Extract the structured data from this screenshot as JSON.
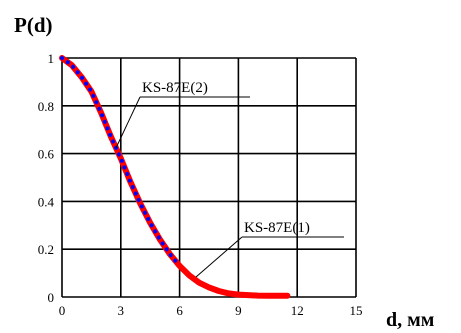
{
  "chart_data": {
    "type": "line",
    "title": "",
    "ylabel": "P(d)",
    "xlabel": "d, мм",
    "xlim": [
      0,
      15
    ],
    "ylim": [
      0,
      1
    ],
    "x_ticks": [
      "0",
      "3",
      "6",
      "9",
      "12",
      "15"
    ],
    "y_ticks": [
      "0",
      "0.2",
      "0.4",
      "0.6",
      "0.8",
      "1"
    ],
    "grid": true,
    "series": [
      {
        "name": "KS-87E(1)",
        "color": "#ff0000",
        "style": "solid",
        "x": [
          0,
          0.5,
          1,
          1.5,
          2,
          2.5,
          3,
          3.5,
          4,
          4.5,
          5,
          5.5,
          6,
          6.5,
          7,
          7.5,
          8,
          8.5,
          9,
          9.5,
          10,
          10.5,
          11,
          11.5
        ],
        "y": [
          1.0,
          0.97,
          0.92,
          0.86,
          0.77,
          0.67,
          0.58,
          0.48,
          0.39,
          0.31,
          0.24,
          0.18,
          0.13,
          0.09,
          0.06,
          0.04,
          0.025,
          0.015,
          0.01,
          0.008,
          0.006,
          0.005,
          0.005,
          0.005
        ]
      },
      {
        "name": "KS-87E(2)",
        "color": "#0000ff",
        "style": "dotted",
        "x": [
          0,
          0.5,
          1,
          1.5,
          2,
          2.5,
          3,
          3.5,
          4,
          4.5,
          5,
          5.5,
          6
        ],
        "y": [
          1.0,
          0.97,
          0.92,
          0.86,
          0.77,
          0.67,
          0.58,
          0.48,
          0.39,
          0.31,
          0.24,
          0.18,
          0.13
        ]
      }
    ],
    "annotations": [
      {
        "text": "KS-87E(2)",
        "points_to_series": "KS-87E(2)",
        "at_x": 3.0
      },
      {
        "text": "KS-87E(1)",
        "points_to_series": "KS-87E(1)",
        "at_x": 7.0
      }
    ]
  }
}
